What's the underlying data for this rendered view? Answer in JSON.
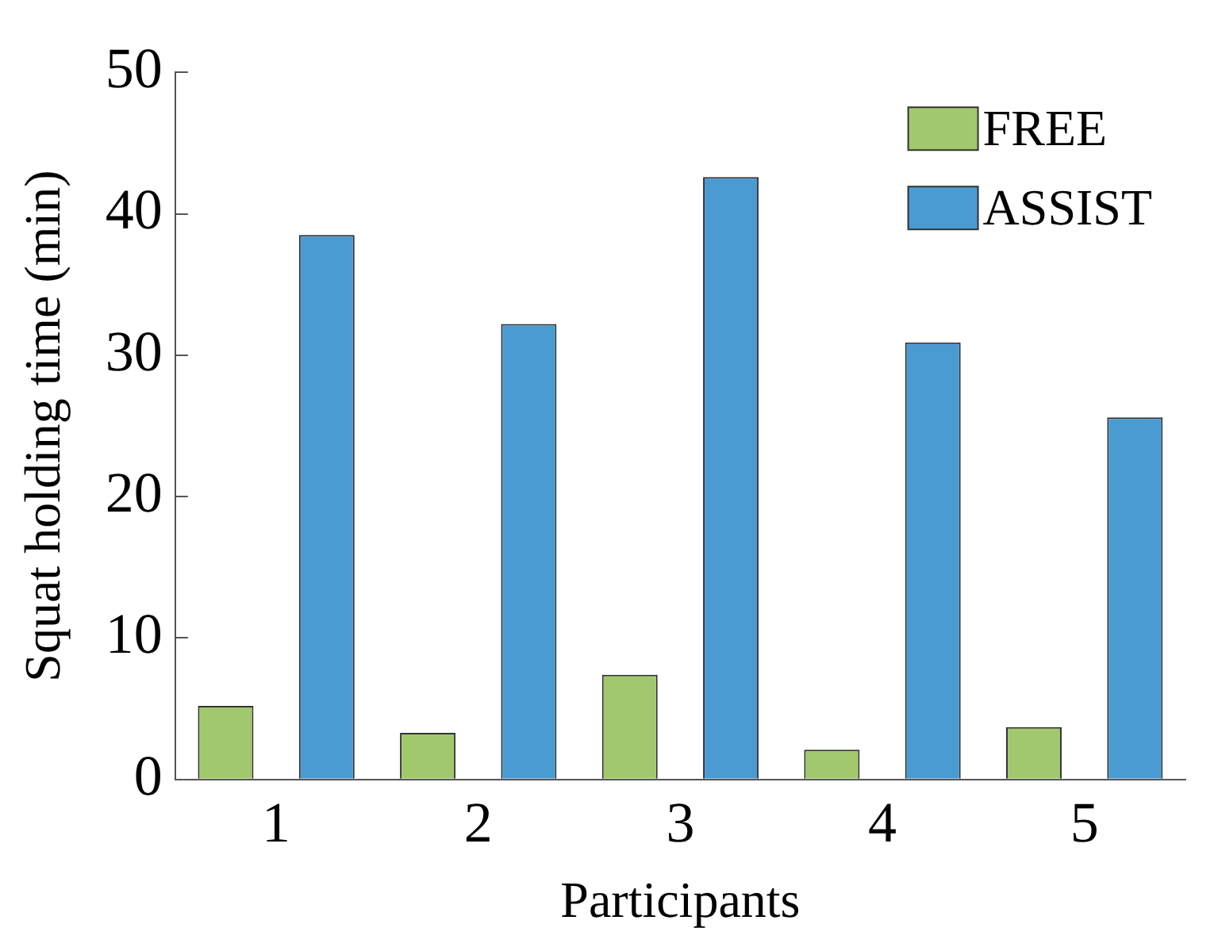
{
  "chart_data": {
    "type": "bar",
    "xlabel": "Participants",
    "ylabel": "Squat holding time (min)",
    "categories": [
      "1",
      "2",
      "3",
      "4",
      "5"
    ],
    "series": [
      {
        "name": "FREE",
        "color": "#a2c86e",
        "values": [
          5.2,
          3.3,
          7.4,
          2.1,
          3.7
        ]
      },
      {
        "name": "ASSIST",
        "color": "#4b9bd3",
        "values": [
          38.5,
          32.2,
          42.6,
          30.9,
          25.6
        ]
      }
    ],
    "ylim": [
      0,
      50
    ],
    "yticks": [
      0,
      10,
      20,
      30,
      40,
      50
    ],
    "grid": false,
    "legend": "top right"
  }
}
